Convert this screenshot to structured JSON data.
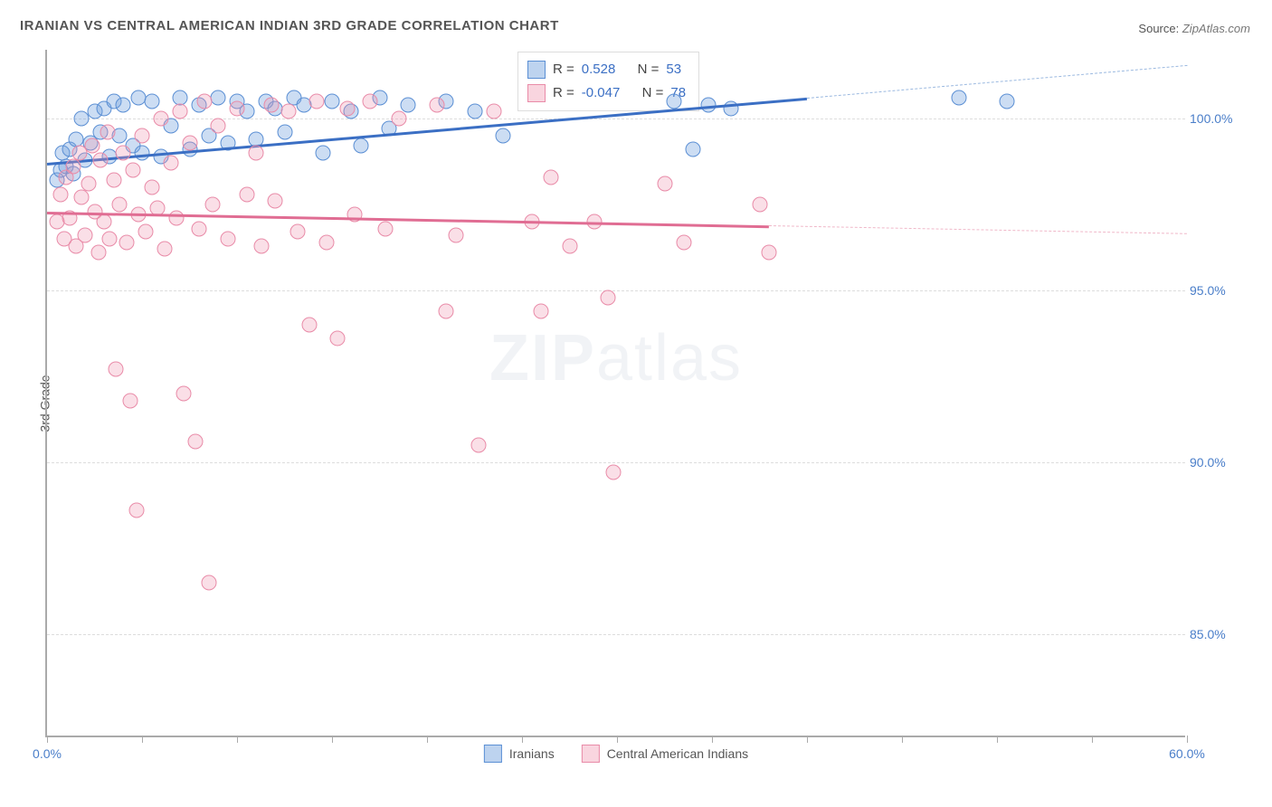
{
  "title": "IRANIAN VS CENTRAL AMERICAN INDIAN 3RD GRADE CORRELATION CHART",
  "source_label": "Source:",
  "source_value": "ZipAtlas.com",
  "y_axis_label": "3rd Grade",
  "watermark_bold": "ZIP",
  "watermark_light": "atlas",
  "chart": {
    "type": "scatter",
    "xlim": [
      0,
      60
    ],
    "ylim": [
      82,
      102
    ],
    "x_ticks": [
      0,
      5,
      10,
      15,
      20,
      25,
      30,
      35,
      40,
      45,
      50,
      55,
      60
    ],
    "x_tick_labels": {
      "0": "0.0%",
      "60": "60.0%"
    },
    "y_ticks": [
      85,
      90,
      95,
      100
    ],
    "y_tick_labels": [
      "85.0%",
      "90.0%",
      "95.0%",
      "100.0%"
    ],
    "grid_color": "#dddddd",
    "background_color": "#ffffff",
    "axis_color": "#aaaaaa",
    "marker_size": 17,
    "series": [
      {
        "name": "Iranians",
        "color_fill": "rgba(108,157,220,0.35)",
        "color_stroke": "#5b8fd4",
        "trend_color": "#3b6fc4",
        "R": "0.528",
        "N": "53",
        "trend": {
          "x1": 0,
          "y1": 98.7,
          "x2": 40,
          "y2": 100.6,
          "dash_to_x": 60
        },
        "points": [
          [
            0.5,
            98.2
          ],
          [
            0.7,
            98.5
          ],
          [
            0.8,
            99.0
          ],
          [
            1.0,
            98.6
          ],
          [
            1.2,
            99.1
          ],
          [
            1.4,
            98.4
          ],
          [
            1.5,
            99.4
          ],
          [
            1.8,
            100.0
          ],
          [
            2.0,
            98.8
          ],
          [
            2.3,
            99.3
          ],
          [
            2.5,
            100.2
          ],
          [
            2.8,
            99.6
          ],
          [
            3.0,
            100.3
          ],
          [
            3.3,
            98.9
          ],
          [
            3.5,
            100.5
          ],
          [
            3.8,
            99.5
          ],
          [
            4.0,
            100.4
          ],
          [
            4.5,
            99.2
          ],
          [
            4.8,
            100.6
          ],
          [
            5.0,
            99.0
          ],
          [
            5.5,
            100.5
          ],
          [
            6.0,
            98.9
          ],
          [
            6.5,
            99.8
          ],
          [
            7.0,
            100.6
          ],
          [
            7.5,
            99.1
          ],
          [
            8.0,
            100.4
          ],
          [
            8.5,
            99.5
          ],
          [
            9.0,
            100.6
          ],
          [
            9.5,
            99.3
          ],
          [
            10.0,
            100.5
          ],
          [
            10.5,
            100.2
          ],
          [
            11.0,
            99.4
          ],
          [
            11.5,
            100.5
          ],
          [
            12.0,
            100.3
          ],
          [
            12.5,
            99.6
          ],
          [
            13.0,
            100.6
          ],
          [
            13.5,
            100.4
          ],
          [
            14.5,
            99.0
          ],
          [
            15.0,
            100.5
          ],
          [
            16.0,
            100.2
          ],
          [
            16.5,
            99.2
          ],
          [
            17.5,
            100.6
          ],
          [
            18.0,
            99.7
          ],
          [
            19.0,
            100.4
          ],
          [
            21.0,
            100.5
          ],
          [
            22.5,
            100.2
          ],
          [
            24.0,
            99.5
          ],
          [
            33.0,
            100.5
          ],
          [
            34.0,
            99.1
          ],
          [
            34.8,
            100.4
          ],
          [
            36.0,
            100.3
          ],
          [
            48.0,
            100.6
          ],
          [
            50.5,
            100.5
          ]
        ]
      },
      {
        "name": "Central American Indians",
        "color_fill": "rgba(240,150,175,0.3)",
        "color_stroke": "#e98ba8",
        "trend_color": "#e06d93",
        "R": "-0.047",
        "N": "78",
        "trend": {
          "x1": 0,
          "y1": 97.3,
          "x2": 38,
          "y2": 96.9,
          "dash_to_x": 60
        },
        "points": [
          [
            0.5,
            97.0
          ],
          [
            0.7,
            97.8
          ],
          [
            0.9,
            96.5
          ],
          [
            1.0,
            98.3
          ],
          [
            1.2,
            97.1
          ],
          [
            1.4,
            98.6
          ],
          [
            1.5,
            96.3
          ],
          [
            1.7,
            99.0
          ],
          [
            1.8,
            97.7
          ],
          [
            2.0,
            96.6
          ],
          [
            2.2,
            98.1
          ],
          [
            2.4,
            99.2
          ],
          [
            2.5,
            97.3
          ],
          [
            2.7,
            96.1
          ],
          [
            2.8,
            98.8
          ],
          [
            3.0,
            97.0
          ],
          [
            3.2,
            99.6
          ],
          [
            3.3,
            96.5
          ],
          [
            3.5,
            98.2
          ],
          [
            3.6,
            92.7
          ],
          [
            3.8,
            97.5
          ],
          [
            4.0,
            99.0
          ],
          [
            4.2,
            96.4
          ],
          [
            4.4,
            91.8
          ],
          [
            4.5,
            98.5
          ],
          [
            4.7,
            88.6
          ],
          [
            4.8,
            97.2
          ],
          [
            5.0,
            99.5
          ],
          [
            5.2,
            96.7
          ],
          [
            5.5,
            98.0
          ],
          [
            5.8,
            97.4
          ],
          [
            6.0,
            100.0
          ],
          [
            6.2,
            96.2
          ],
          [
            6.5,
            98.7
          ],
          [
            6.8,
            97.1
          ],
          [
            7.0,
            100.2
          ],
          [
            7.2,
            92.0
          ],
          [
            7.5,
            99.3
          ],
          [
            7.8,
            90.6
          ],
          [
            8.0,
            96.8
          ],
          [
            8.3,
            100.5
          ],
          [
            8.5,
            86.5
          ],
          [
            8.7,
            97.5
          ],
          [
            9.0,
            99.8
          ],
          [
            9.5,
            96.5
          ],
          [
            10.0,
            100.3
          ],
          [
            10.5,
            97.8
          ],
          [
            11.0,
            99.0
          ],
          [
            11.3,
            96.3
          ],
          [
            11.8,
            100.4
          ],
          [
            12.0,
            97.6
          ],
          [
            12.7,
            100.2
          ],
          [
            13.2,
            96.7
          ],
          [
            13.8,
            94.0
          ],
          [
            14.2,
            100.5
          ],
          [
            14.7,
            96.4
          ],
          [
            15.3,
            93.6
          ],
          [
            15.8,
            100.3
          ],
          [
            16.2,
            97.2
          ],
          [
            17.0,
            100.5
          ],
          [
            17.8,
            96.8
          ],
          [
            18.5,
            100.0
          ],
          [
            20.5,
            100.4
          ],
          [
            21.0,
            94.4
          ],
          [
            21.5,
            96.6
          ],
          [
            22.7,
            90.5
          ],
          [
            23.5,
            100.2
          ],
          [
            25.5,
            97.0
          ],
          [
            26.0,
            94.4
          ],
          [
            26.5,
            98.3
          ],
          [
            27.5,
            96.3
          ],
          [
            28.8,
            97.0
          ],
          [
            29.5,
            94.8
          ],
          [
            29.8,
            89.7
          ],
          [
            32.5,
            98.1
          ],
          [
            33.5,
            96.4
          ],
          [
            37.5,
            97.5
          ],
          [
            38.0,
            96.1
          ]
        ]
      }
    ]
  },
  "legend_stats": {
    "r_label": "R =",
    "n_label": "N ="
  },
  "bottom_legend": [
    {
      "swatch": "blue",
      "label": "Iranians"
    },
    {
      "swatch": "pink",
      "label": "Central American Indians"
    }
  ]
}
